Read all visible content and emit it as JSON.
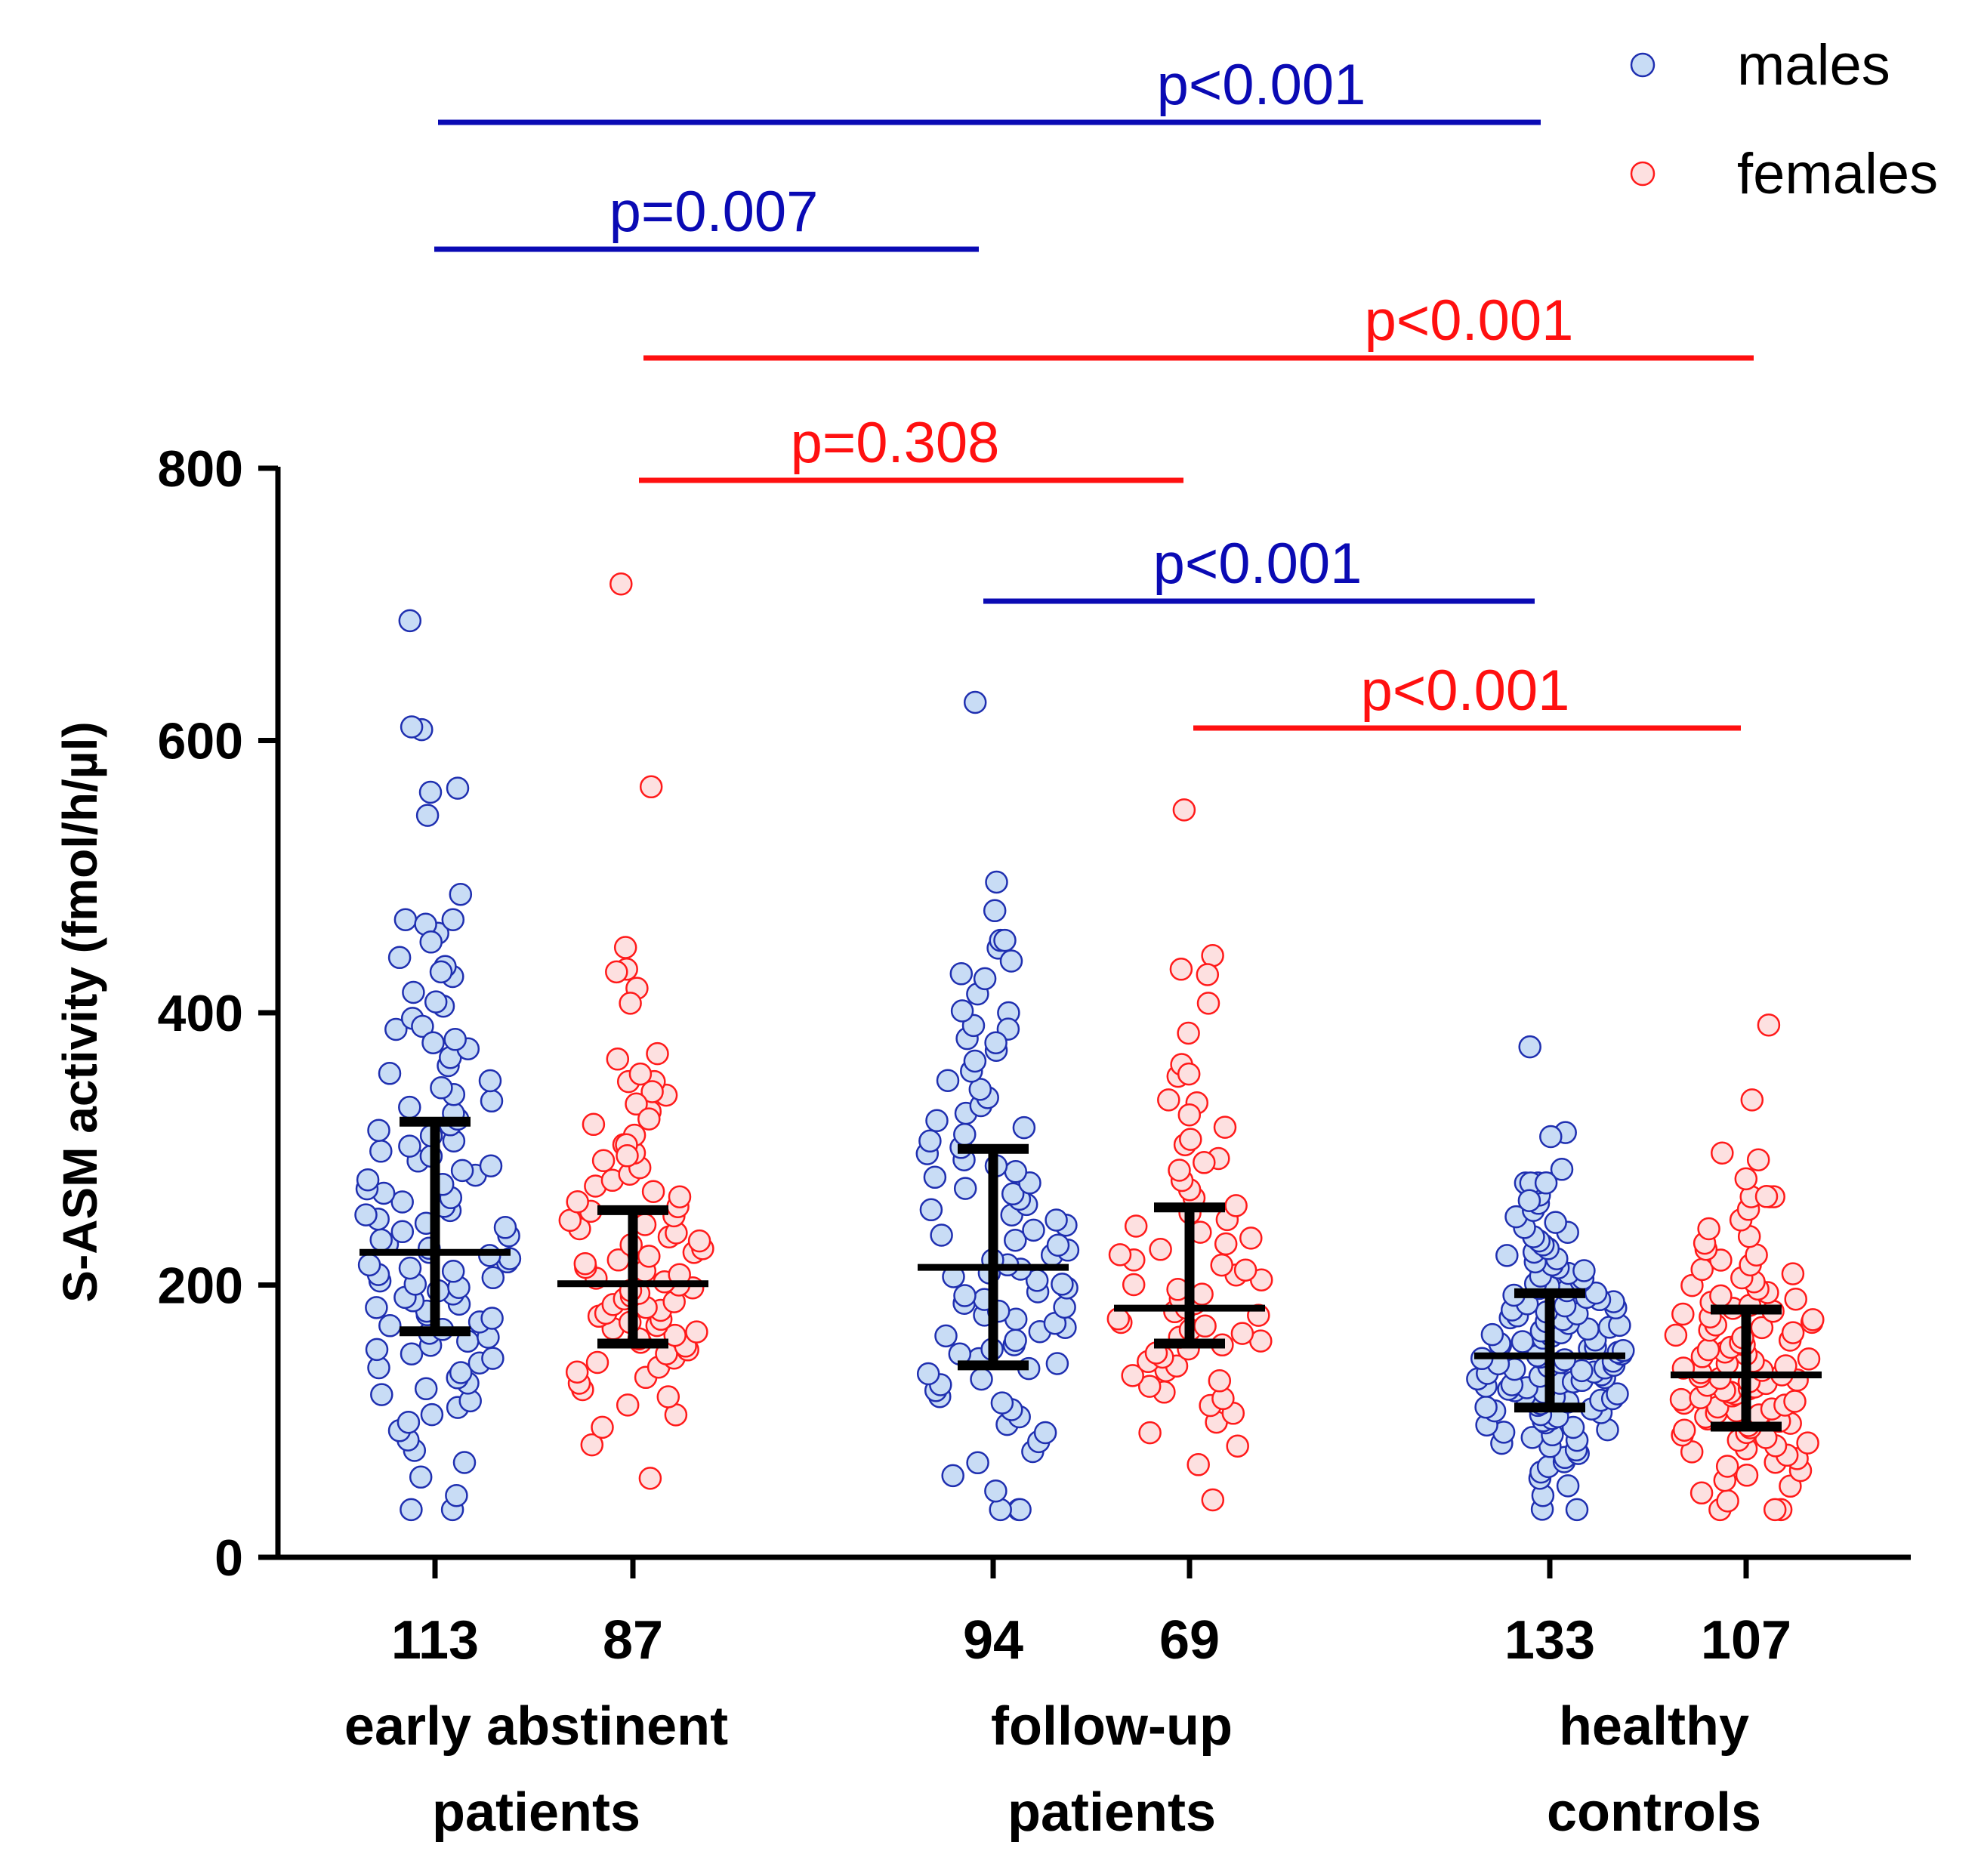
{
  "chart_data": {
    "type": "scatter",
    "title": "",
    "ylabel": "S-ASM activity (fmol/h/µl)",
    "xlabel": "",
    "ylim": [
      0,
      800
    ],
    "yticks": [
      "0",
      "200",
      "400",
      "600",
      "800"
    ],
    "legend": {
      "placement": "top-right",
      "entries": [
        {
          "name": "males",
          "color": "#1f2fb0",
          "fill": "#c8dcf5"
        },
        {
          "name": "females",
          "color": "#ff1a1a",
          "fill": "#fde0e0"
        }
      ]
    },
    "colors": {
      "male_stroke": "#1f2fb0",
      "male_fill": "#c8dcf5",
      "female_stroke": "#ff1a1a",
      "female_fill": "#fde0e0",
      "male_sig": "#0a0ab4",
      "female_sig": "#ff1010",
      "axis": "#000000"
    },
    "groups": [
      {
        "label_line1": "early abstinent",
        "label_line2": "patients",
        "slots": [
          0,
          1
        ]
      },
      {
        "label_line1": "follow-up",
        "label_line2": "patients",
        "slots": [
          2,
          3
        ]
      },
      {
        "label_line1": "healthy",
        "label_line2": "controls",
        "slots": [
          4,
          5
        ]
      }
    ],
    "series": [
      {
        "name": "early abstinent males",
        "sex": "males",
        "n_label": "113",
        "n": 113,
        "median": 224,
        "q1": 166,
        "q3": 320,
        "outliers": [
          688,
          608,
          610,
          562,
          565,
          545,
          487,
          465,
          452,
          434,
          430,
          408,
          390,
          378
        ]
      },
      {
        "name": "early abstinent females",
        "sex": "females",
        "n_label": "87",
        "n": 87,
        "median": 201,
        "q1": 157,
        "q3": 255,
        "outliers": [
          715,
          566,
          448,
          432,
          430,
          418,
          407,
          370,
          366,
          355,
          342,
          333,
          322,
          303,
          295
        ]
      },
      {
        "name": "follow-up males",
        "sex": "males",
        "n_label": "94",
        "n": 94,
        "median": 213,
        "q1": 141,
        "q3": 300,
        "outliers": [
          628,
          496,
          475,
          438,
          425,
          400,
          388,
          378
        ]
      },
      {
        "name": "follow-up females",
        "sex": "females",
        "n_label": "69",
        "n": 69,
        "median": 183,
        "q1": 157,
        "q3": 257,
        "outliers": [
          549,
          442,
          432,
          428,
          407,
          385,
          362,
          355,
          336,
          325,
          307,
          290
        ]
      },
      {
        "name": "healthy control males",
        "sex": "males",
        "n_label": "133",
        "n": 133,
        "median": 148,
        "q1": 110,
        "q3": 194,
        "outliers": [
          375,
          312,
          309,
          285,
          275,
          262
        ]
      },
      {
        "name": "healthy control females",
        "sex": "females",
        "n_label": "107",
        "n": 107,
        "median": 134,
        "q1": 96,
        "q3": 182,
        "outliers": [
          391,
          336,
          297,
          292,
          278,
          265
        ]
      }
    ],
    "comparisons": [
      {
        "label": "p<0.001",
        "sex": "males",
        "from": 0,
        "to": 4
      },
      {
        "label": "p=0.007",
        "sex": "males",
        "from": 0,
        "to": 2
      },
      {
        "label": "p<0.001",
        "sex": "females",
        "from": 1,
        "to": 5
      },
      {
        "label": "p=0.308",
        "sex": "females",
        "from": 1,
        "to": 3
      },
      {
        "label": "p<0.001",
        "sex": "males",
        "from": 2,
        "to": 4
      },
      {
        "label": "p<0.001",
        "sex": "females",
        "from": 3,
        "to": 5
      }
    ]
  }
}
